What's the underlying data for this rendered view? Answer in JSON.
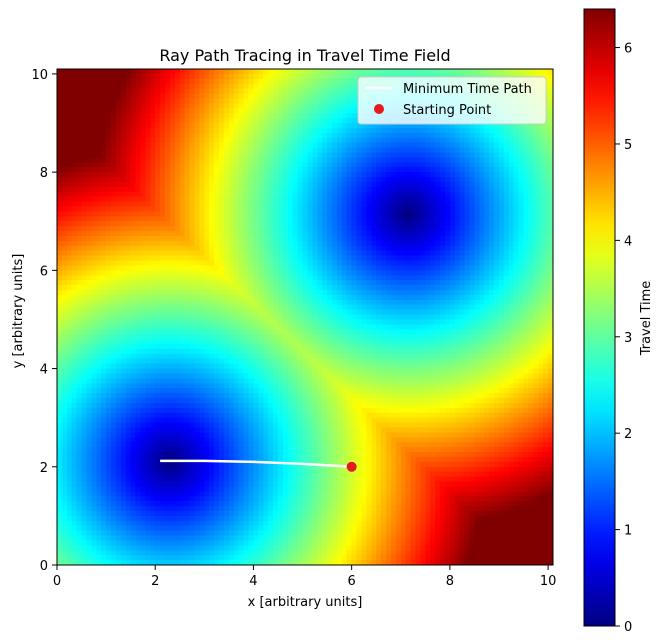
{
  "chart_data": {
    "type": "heatmap",
    "title": "Ray Path Tracing in Travel Time Field",
    "xlabel": "x [arbitrary units]",
    "ylabel": "y [arbitrary units]",
    "xlim": [
      0,
      10.1
    ],
    "ylim": [
      0,
      10.1
    ],
    "xticks": [
      0,
      2,
      4,
      6,
      8,
      10
    ],
    "yticks": [
      0,
      2,
      4,
      6,
      8,
      10
    ],
    "colormap": "jet",
    "field": {
      "description_of_sources": "minimum travel time field from two low-time centers",
      "centers": [
        {
          "x": 2.3,
          "y": 2.1
        },
        {
          "x": 7.15,
          "y": 7.15
        }
      ],
      "value_range": [
        0,
        6.4
      ],
      "grid_resolution": 101
    },
    "colorbar": {
      "label": "Travel Time",
      "ticks": [
        0,
        1,
        2,
        3,
        4,
        5,
        6
      ],
      "range": [
        0,
        6.4
      ]
    },
    "series": [
      {
        "name": "Minimum Time Path",
        "type": "line",
        "color": "#ffffff",
        "x": [
          6.0,
          5.0,
          4.0,
          3.0,
          2.1
        ],
        "y": [
          2.0,
          2.06,
          2.1,
          2.12,
          2.12
        ]
      },
      {
        "name": "Starting Point",
        "type": "scatter",
        "color": "#e41a1c",
        "x": [
          6.0
        ],
        "y": [
          2.0
        ]
      }
    ],
    "legend": {
      "placement": "top-right",
      "entries": [
        "Minimum Time Path",
        "Starting Point"
      ]
    }
  }
}
